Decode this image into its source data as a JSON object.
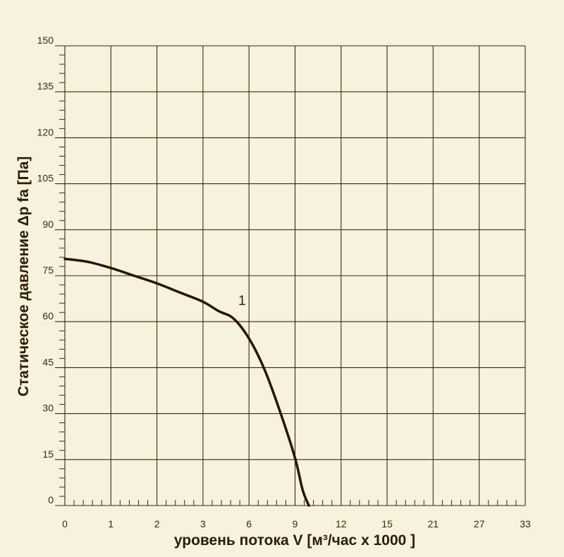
{
  "chart_data": {
    "type": "line",
    "xlabel": "уровень потока  V [м³/час x 1000 ]",
    "ylabel": "Статическое давление  Δp fa [Па]",
    "x_ticks": [
      "0",
      "1",
      "2",
      "3",
      "6",
      "9",
      "12",
      "15",
      "21",
      "27",
      "33"
    ],
    "y_ticks": [
      "0",
      "15",
      "30",
      "45",
      "60",
      "75",
      "90",
      "105",
      "120",
      "135",
      "150"
    ],
    "ylim": [
      0,
      150
    ],
    "grid": true,
    "series": [
      {
        "name": "1",
        "x": [
          0,
          0.5,
          1,
          1.5,
          2,
          2.5,
          3,
          4,
          5,
          6,
          7,
          8,
          9,
          9.5,
          9.9
        ],
        "y": [
          80.5,
          79.5,
          77.5,
          75,
          72.5,
          69.5,
          66.5,
          63.5,
          61,
          54.5,
          44.5,
          31,
          15.5,
          5,
          0
        ]
      }
    ],
    "colors": {
      "background": "#f7f1dd",
      "grid": "#3a2a08",
      "curve": "#2a1405"
    }
  }
}
